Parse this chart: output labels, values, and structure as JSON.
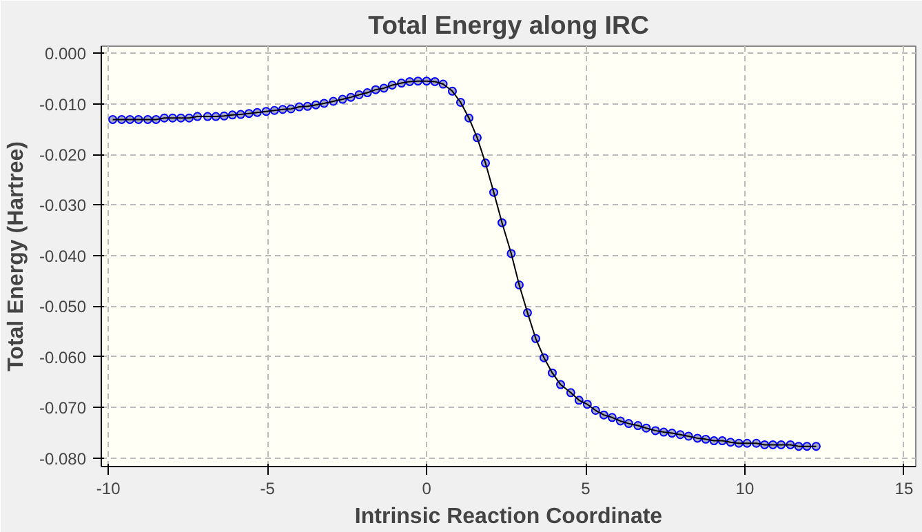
{
  "chart_data": {
    "type": "line",
    "title": "Total Energy along IRC",
    "xlabel": "Intrinsic Reaction Coordinate",
    "ylabel": "Total Energy (Hartree)",
    "x": [
      -9.86,
      -9.58,
      -9.32,
      -9.05,
      -8.76,
      -8.5,
      -8.24,
      -7.98,
      -7.72,
      -7.46,
      -7.2,
      -6.88,
      -6.62,
      -6.36,
      -6.1,
      -5.84,
      -5.58,
      -5.32,
      -5.04,
      -4.78,
      -4.52,
      -4.26,
      -4.0,
      -3.74,
      -3.48,
      -3.22,
      -2.93,
      -2.64,
      -2.38,
      -2.12,
      -1.86,
      -1.6,
      -1.34,
      -1.08,
      -0.79,
      -0.53,
      -0.27,
      0,
      0.26,
      0.52,
      0.81,
      1.07,
      1.33,
      1.59,
      1.85,
      2.11,
      2.37,
      2.66,
      2.91,
      3.17,
      3.43,
      3.69,
      3.95,
      4.21,
      4.53,
      4.79,
      5.05,
      5.31,
      5.57,
      5.83,
      6.09,
      6.35,
      6.64,
      6.9,
      7.19,
      7.45,
      7.71,
      7.97,
      8.23,
      8.51,
      8.77,
      9.03,
      9.29,
      9.55,
      9.81,
      10.07,
      10.36,
      10.62,
      10.88,
      11.14,
      11.43,
      11.69,
      11.95,
      12.24
    ],
    "series": [
      {
        "color": "#0000ff",
        "values": [
          -0.0131,
          -0.0131,
          -0.0131,
          -0.0131,
          -0.0131,
          -0.0131,
          -0.0128,
          -0.0128,
          -0.0128,
          -0.0128,
          -0.0125,
          -0.0125,
          -0.0125,
          -0.0124,
          -0.0122,
          -0.0121,
          -0.0119,
          -0.0117,
          -0.0115,
          -0.0113,
          -0.0111,
          -0.011,
          -0.0106,
          -0.0105,
          -0.0102,
          -0.0099,
          -0.0095,
          -0.0091,
          -0.0087,
          -0.0082,
          -0.0078,
          -0.0072,
          -0.0069,
          -0.0063,
          -0.0059,
          -0.0056,
          -0.0055,
          -0.0055,
          -0.0056,
          -0.0061,
          -0.0075,
          -0.0097,
          -0.0128,
          -0.0167,
          -0.0217,
          -0.0275,
          -0.0335,
          -0.0396,
          -0.0458,
          -0.0513,
          -0.0564,
          -0.0602,
          -0.0632,
          -0.0655,
          -0.0671,
          -0.0686,
          -0.0694,
          -0.0706,
          -0.0715,
          -0.072,
          -0.0727,
          -0.0732,
          -0.0736,
          -0.0741,
          -0.0746,
          -0.0749,
          -0.0751,
          -0.0754,
          -0.0757,
          -0.0761,
          -0.0763,
          -0.0766,
          -0.0766,
          -0.0769,
          -0.0771,
          -0.0771,
          -0.0771,
          -0.0774,
          -0.0774,
          -0.0774,
          -0.0774,
          -0.0777,
          -0.0777,
          -0.0777
        ]
      }
    ],
    "xlim": [
      -10.22,
      15.37
    ],
    "ylim": [
      -0.0817,
      0.0014
    ],
    "xticks": [
      -10,
      -5,
      0,
      5,
      10,
      15
    ],
    "yticks": [
      {
        "value": 0,
        "label": "0.000"
      },
      {
        "value": -0.01,
        "label": "-0.010"
      },
      {
        "value": -0.02,
        "label": "-0.020"
      },
      {
        "value": -0.03,
        "label": "-0.030"
      },
      {
        "value": -0.04,
        "label": "-0.040"
      },
      {
        "value": -0.05,
        "label": "-0.050"
      },
      {
        "value": -0.06,
        "label": "-0.060"
      },
      {
        "value": -0.07,
        "label": "-0.070"
      },
      {
        "value": -0.08,
        "label": "-0.080"
      }
    ],
    "grid": true,
    "marker": "circle",
    "line_style": "solid"
  }
}
